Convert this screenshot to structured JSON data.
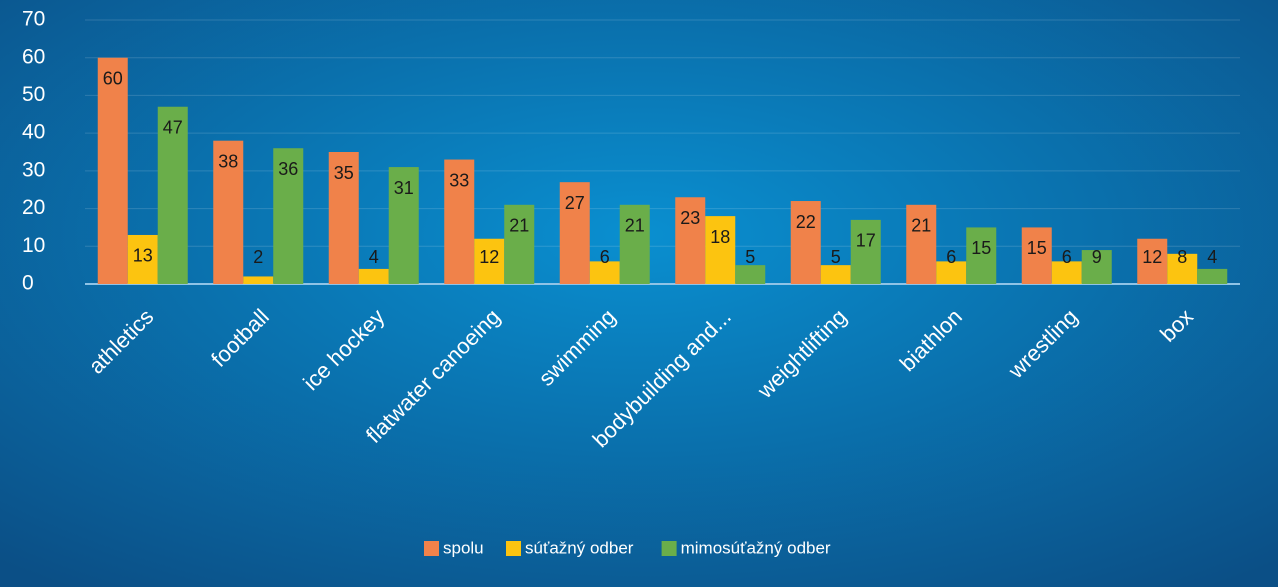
{
  "chart_data": {
    "type": "bar",
    "categories": [
      "athletics",
      "football",
      "ice hockey",
      "flatwater canoeing",
      "swimming",
      "bodybuilding and...",
      "weightlifting",
      "biathlon",
      "wrestling",
      "box"
    ],
    "series": [
      {
        "name": "spolu",
        "color": "#f0824a",
        "values": [
          60,
          38,
          35,
          33,
          27,
          23,
          22,
          21,
          15,
          12
        ]
      },
      {
        "name": "súťažný odber",
        "color": "#fcc410",
        "values": [
          13,
          2,
          4,
          12,
          6,
          18,
          5,
          6,
          6,
          8
        ]
      },
      {
        "name": "mimosúťažný odber",
        "color": "#6aae4a",
        "values": [
          47,
          36,
          31,
          21,
          21,
          5,
          17,
          15,
          9,
          4
        ]
      }
    ],
    "ylim": [
      0,
      70
    ],
    "yticks": [
      0,
      10,
      20,
      30,
      40,
      50,
      60,
      70
    ],
    "grid": true,
    "legend": "bottom"
  }
}
